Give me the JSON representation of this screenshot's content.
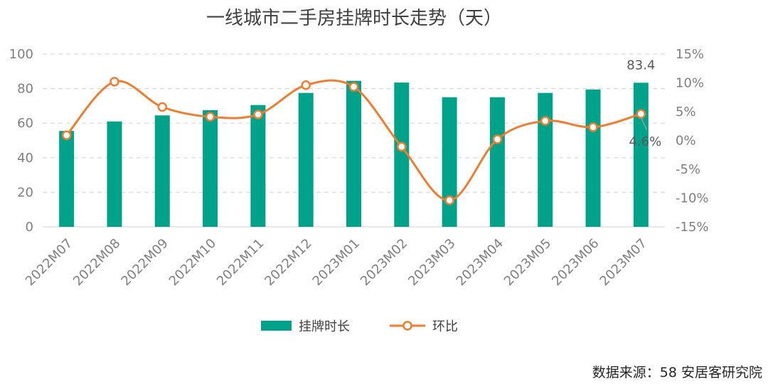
{
  "chart_data": {
    "type": "bar+line",
    "title": "一线城市二手房挂牌时长走势（天）",
    "categories": [
      "2022M07",
      "2022M08",
      "2022M09",
      "2022M10",
      "2022M11",
      "2022M12",
      "2023M01",
      "2023M02",
      "2023M03",
      "2023M04",
      "2023M05",
      "2023M06",
      "2023M07"
    ],
    "series": [
      {
        "name": "挂牌时长",
        "type": "bar",
        "axis": "left",
        "color": "#00a389",
        "values": [
          55.5,
          61.0,
          64.5,
          67.5,
          70.5,
          77.5,
          84.5,
          83.5,
          75.0,
          75.0,
          77.5,
          79.5,
          83.4
        ]
      },
      {
        "name": "环比",
        "type": "line",
        "axis": "right",
        "color": "#ed7d31",
        "values": [
          0.9,
          10.2,
          5.8,
          4.1,
          4.5,
          9.6,
          9.3,
          -1.1,
          -10.4,
          0.2,
          3.4,
          2.3,
          4.6
        ]
      }
    ],
    "y_left": {
      "min": 0,
      "max": 100,
      "step": 20,
      "ticks": [
        "0",
        "20",
        "40",
        "60",
        "80",
        "100"
      ]
    },
    "y_right": {
      "min": -15,
      "max": 15,
      "step": 5,
      "ticks": [
        "-15%",
        "-10%",
        "-5%",
        "0%",
        "5%",
        "10%",
        "15%"
      ]
    },
    "grid": true,
    "legend_position": "bottom",
    "data_labels": {
      "last_bar": "83.4",
      "last_point": "4.6%"
    }
  },
  "legend": {
    "bar_label": "挂牌时长",
    "line_label": "环比"
  },
  "source": "数据来源：58 安居客研究院"
}
